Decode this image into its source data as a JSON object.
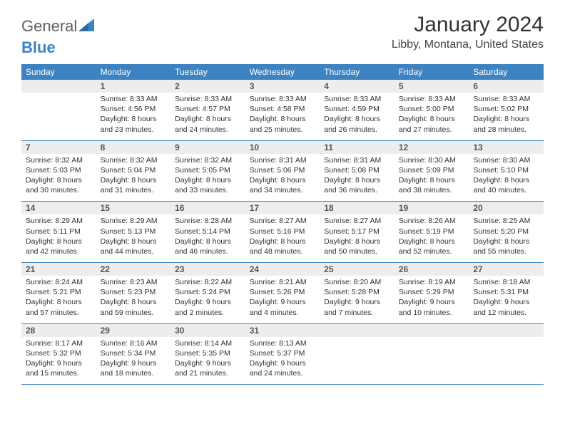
{
  "brand": {
    "part1": "General",
    "part2": "Blue"
  },
  "title": "January 2024",
  "location": "Libby, Montana, United States",
  "colors": {
    "accent": "#3d83c2",
    "header_text": "#ffffff",
    "daynum_bg": "#ededed"
  },
  "weekdays": [
    "Sunday",
    "Monday",
    "Tuesday",
    "Wednesday",
    "Thursday",
    "Friday",
    "Saturday"
  ],
  "weeks": [
    [
      {
        "n": "",
        "sr": "",
        "ss": "",
        "dl": ""
      },
      {
        "n": "1",
        "sr": "Sunrise: 8:33 AM",
        "ss": "Sunset: 4:56 PM",
        "dl": "Daylight: 8 hours and 23 minutes."
      },
      {
        "n": "2",
        "sr": "Sunrise: 8:33 AM",
        "ss": "Sunset: 4:57 PM",
        "dl": "Daylight: 8 hours and 24 minutes."
      },
      {
        "n": "3",
        "sr": "Sunrise: 8:33 AM",
        "ss": "Sunset: 4:58 PM",
        "dl": "Daylight: 8 hours and 25 minutes."
      },
      {
        "n": "4",
        "sr": "Sunrise: 8:33 AM",
        "ss": "Sunset: 4:59 PM",
        "dl": "Daylight: 8 hours and 26 minutes."
      },
      {
        "n": "5",
        "sr": "Sunrise: 8:33 AM",
        "ss": "Sunset: 5:00 PM",
        "dl": "Daylight: 8 hours and 27 minutes."
      },
      {
        "n": "6",
        "sr": "Sunrise: 8:33 AM",
        "ss": "Sunset: 5:02 PM",
        "dl": "Daylight: 8 hours and 28 minutes."
      }
    ],
    [
      {
        "n": "7",
        "sr": "Sunrise: 8:32 AM",
        "ss": "Sunset: 5:03 PM",
        "dl": "Daylight: 8 hours and 30 minutes."
      },
      {
        "n": "8",
        "sr": "Sunrise: 8:32 AM",
        "ss": "Sunset: 5:04 PM",
        "dl": "Daylight: 8 hours and 31 minutes."
      },
      {
        "n": "9",
        "sr": "Sunrise: 8:32 AM",
        "ss": "Sunset: 5:05 PM",
        "dl": "Daylight: 8 hours and 33 minutes."
      },
      {
        "n": "10",
        "sr": "Sunrise: 8:31 AM",
        "ss": "Sunset: 5:06 PM",
        "dl": "Daylight: 8 hours and 34 minutes."
      },
      {
        "n": "11",
        "sr": "Sunrise: 8:31 AM",
        "ss": "Sunset: 5:08 PM",
        "dl": "Daylight: 8 hours and 36 minutes."
      },
      {
        "n": "12",
        "sr": "Sunrise: 8:30 AM",
        "ss": "Sunset: 5:09 PM",
        "dl": "Daylight: 8 hours and 38 minutes."
      },
      {
        "n": "13",
        "sr": "Sunrise: 8:30 AM",
        "ss": "Sunset: 5:10 PM",
        "dl": "Daylight: 8 hours and 40 minutes."
      }
    ],
    [
      {
        "n": "14",
        "sr": "Sunrise: 8:29 AM",
        "ss": "Sunset: 5:11 PM",
        "dl": "Daylight: 8 hours and 42 minutes."
      },
      {
        "n": "15",
        "sr": "Sunrise: 8:29 AM",
        "ss": "Sunset: 5:13 PM",
        "dl": "Daylight: 8 hours and 44 minutes."
      },
      {
        "n": "16",
        "sr": "Sunrise: 8:28 AM",
        "ss": "Sunset: 5:14 PM",
        "dl": "Daylight: 8 hours and 46 minutes."
      },
      {
        "n": "17",
        "sr": "Sunrise: 8:27 AM",
        "ss": "Sunset: 5:16 PM",
        "dl": "Daylight: 8 hours and 48 minutes."
      },
      {
        "n": "18",
        "sr": "Sunrise: 8:27 AM",
        "ss": "Sunset: 5:17 PM",
        "dl": "Daylight: 8 hours and 50 minutes."
      },
      {
        "n": "19",
        "sr": "Sunrise: 8:26 AM",
        "ss": "Sunset: 5:19 PM",
        "dl": "Daylight: 8 hours and 52 minutes."
      },
      {
        "n": "20",
        "sr": "Sunrise: 8:25 AM",
        "ss": "Sunset: 5:20 PM",
        "dl": "Daylight: 8 hours and 55 minutes."
      }
    ],
    [
      {
        "n": "21",
        "sr": "Sunrise: 8:24 AM",
        "ss": "Sunset: 5:21 PM",
        "dl": "Daylight: 8 hours and 57 minutes."
      },
      {
        "n": "22",
        "sr": "Sunrise: 8:23 AM",
        "ss": "Sunset: 5:23 PM",
        "dl": "Daylight: 8 hours and 59 minutes."
      },
      {
        "n": "23",
        "sr": "Sunrise: 8:22 AM",
        "ss": "Sunset: 5:24 PM",
        "dl": "Daylight: 9 hours and 2 minutes."
      },
      {
        "n": "24",
        "sr": "Sunrise: 8:21 AM",
        "ss": "Sunset: 5:26 PM",
        "dl": "Daylight: 9 hours and 4 minutes."
      },
      {
        "n": "25",
        "sr": "Sunrise: 8:20 AM",
        "ss": "Sunset: 5:28 PM",
        "dl": "Daylight: 9 hours and 7 minutes."
      },
      {
        "n": "26",
        "sr": "Sunrise: 8:19 AM",
        "ss": "Sunset: 5:29 PM",
        "dl": "Daylight: 9 hours and 10 minutes."
      },
      {
        "n": "27",
        "sr": "Sunrise: 8:18 AM",
        "ss": "Sunset: 5:31 PM",
        "dl": "Daylight: 9 hours and 12 minutes."
      }
    ],
    [
      {
        "n": "28",
        "sr": "Sunrise: 8:17 AM",
        "ss": "Sunset: 5:32 PM",
        "dl": "Daylight: 9 hours and 15 minutes."
      },
      {
        "n": "29",
        "sr": "Sunrise: 8:16 AM",
        "ss": "Sunset: 5:34 PM",
        "dl": "Daylight: 9 hours and 18 minutes."
      },
      {
        "n": "30",
        "sr": "Sunrise: 8:14 AM",
        "ss": "Sunset: 5:35 PM",
        "dl": "Daylight: 9 hours and 21 minutes."
      },
      {
        "n": "31",
        "sr": "Sunrise: 8:13 AM",
        "ss": "Sunset: 5:37 PM",
        "dl": "Daylight: 9 hours and 24 minutes."
      },
      {
        "n": "",
        "sr": "",
        "ss": "",
        "dl": ""
      },
      {
        "n": "",
        "sr": "",
        "ss": "",
        "dl": ""
      },
      {
        "n": "",
        "sr": "",
        "ss": "",
        "dl": ""
      }
    ]
  ]
}
